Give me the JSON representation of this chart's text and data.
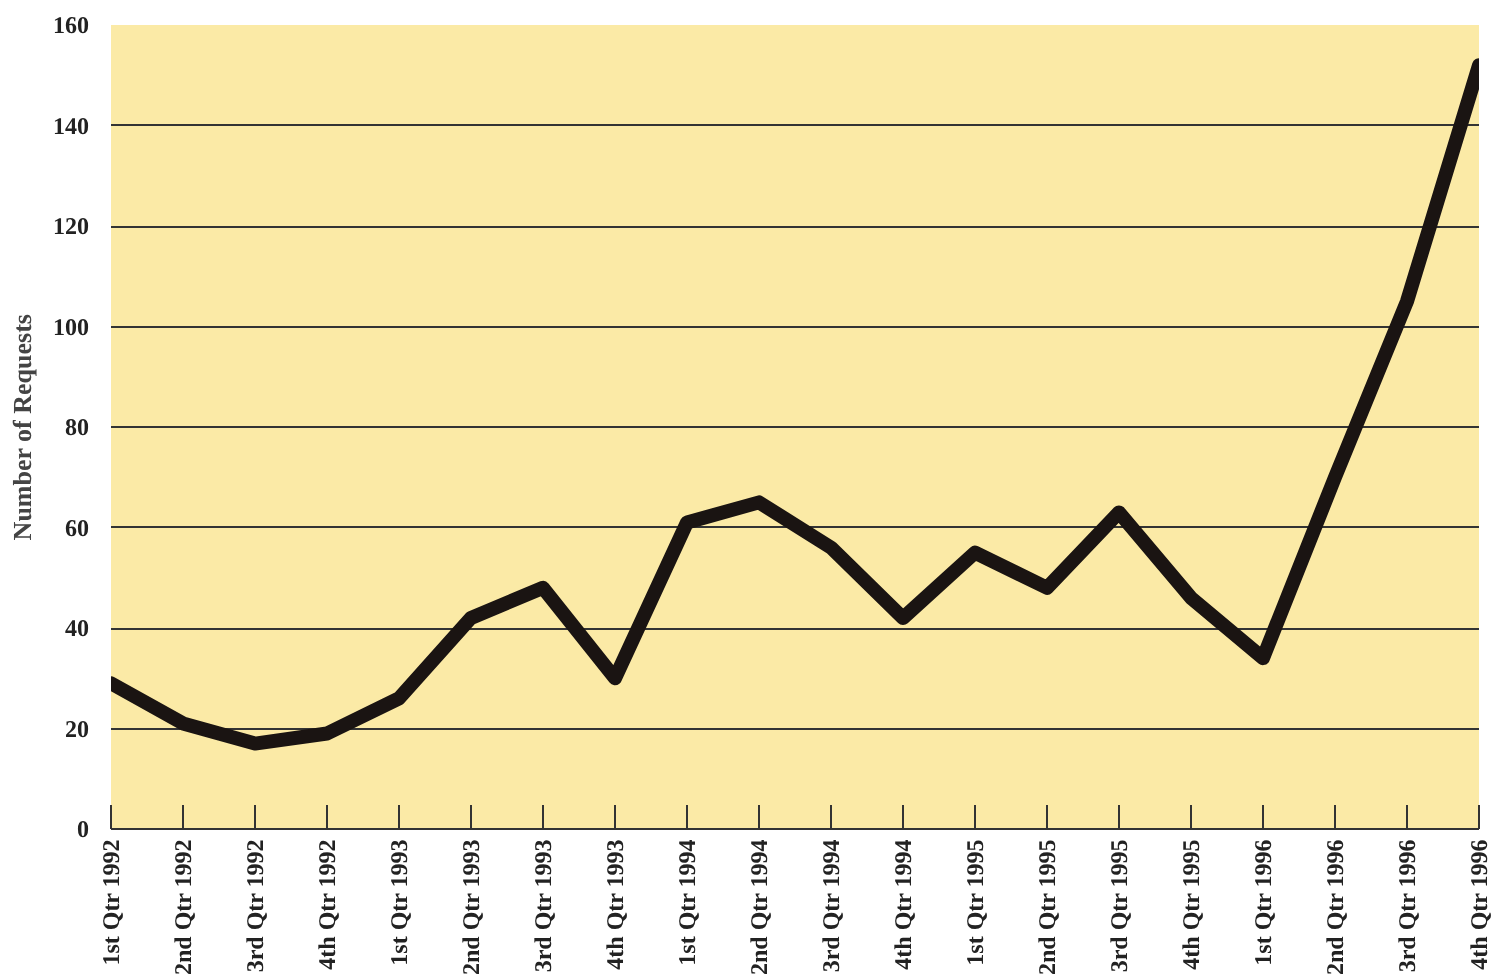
{
  "chart_data": {
    "type": "line",
    "ylabel": "Number of Requests",
    "categories": [
      "1st Qtr 1992",
      "2nd Qtr 1992",
      "3rd Qtr 1992",
      "4th Qtr 1992",
      "1st Qtr 1993",
      "2nd Qtr 1993",
      "3rd Qtr 1993",
      "4th Qtr 1993",
      "1st Qtr 1994",
      "2nd Qtr 1994",
      "3rd Qtr 1994",
      "4th Qtr 1994",
      "1st Qtr 1995",
      "2nd Qtr 1995",
      "3rd Qtr 1995",
      "4th Qtr 1995",
      "1st Qtr 1996",
      "2nd Qtr 1996",
      "3rd Qtr 1996",
      "4th Qtr 1996"
    ],
    "series": [
      {
        "color": "#1a1412",
        "values": [
          29,
          21,
          17,
          19,
          26,
          42,
          48,
          30,
          61,
          65,
          56,
          42,
          55,
          48,
          63,
          46,
          34,
          70,
          105,
          152
        ]
      }
    ],
    "ylim": [
      0,
      160
    ],
    "yticks": [
      0,
      20,
      40,
      60,
      80,
      100,
      120,
      140,
      160
    ],
    "grid": "y",
    "marker": "none",
    "line_style": "solid"
  }
}
